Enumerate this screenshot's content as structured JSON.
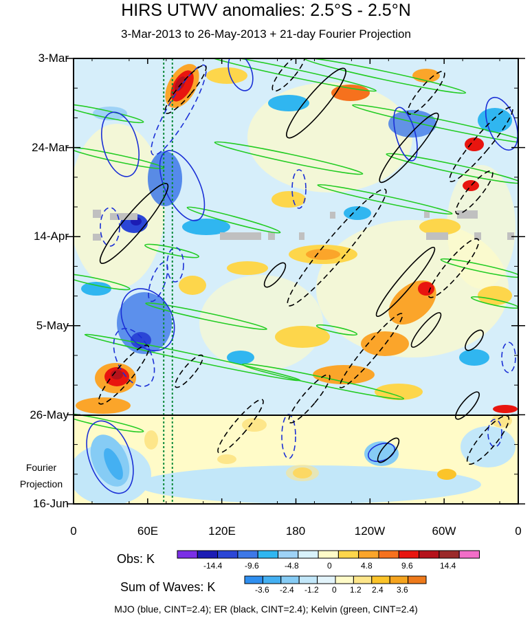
{
  "chart_data": {
    "type": "heatmap",
    "title": "HIRS UTWV anomalies: 2.5°S - 2.5°N",
    "subtitle": "3-Mar-2013 to 26-May-2013 + 21-day Fourier Projection",
    "y_ticks": [
      "3-Mar",
      "24-Mar",
      "14-Apr",
      "5-May",
      "26-May",
      "16-Jun"
    ],
    "projection_label": [
      "Fourier",
      "Projection"
    ],
    "x_ticks": [
      "0",
      "60E",
      "120E",
      "180",
      "120W",
      "60W",
      "0"
    ],
    "vertical_markers_lon": [
      73,
      80
    ],
    "obs_colorbar": {
      "title": "Obs: K",
      "colors": [
        "#7b2fe6",
        "#1c1cb4",
        "#2b46d6",
        "#3d78e8",
        "#30b6f0",
        "#9ed2f6",
        "#d8f2fb",
        "#fffbc8",
        "#fdd64b",
        "#fba52a",
        "#f6711d",
        "#e8150f",
        "#b5121b",
        "#9b2a2a",
        "#f26ec8"
      ],
      "labels": [
        "-14.4",
        "-9.6",
        "-4.8",
        "0",
        "4.8",
        "9.6",
        "14.4"
      ]
    },
    "waves_colorbar": {
      "title": "Sum of Waves: K",
      "colors": [
        "#2f8ff0",
        "#44b0f2",
        "#86ccf5",
        "#c2e7f9",
        "#e3f4fb",
        "#fffbc8",
        "#fde68a",
        "#fbc42a",
        "#f5a41f",
        "#ee7a1b"
      ],
      "labels": [
        "-3.6",
        "-2.4",
        "-1.2",
        "0",
        "1.2",
        "2.4",
        "3.6"
      ]
    },
    "footer": "MJO (blue, CINT=2.4); ER (black, CINT=2.4); Kelvin (green, CINT=2.4)"
  }
}
